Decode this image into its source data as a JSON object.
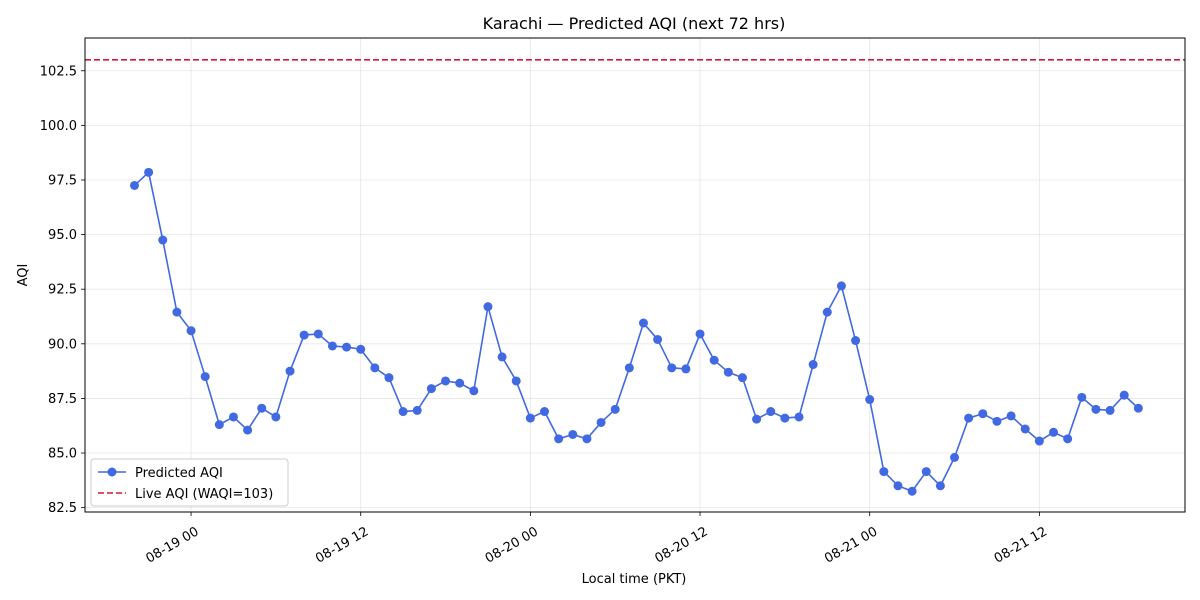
{
  "chart_data": {
    "type": "line",
    "title": "Karachi — Predicted AQI (next 72 hrs)",
    "xlabel": "Local time (PKT)",
    "ylabel": "AQI",
    "ylim": [
      82.3,
      104.0
    ],
    "xlim_hours": [
      -7.5,
      70.3
    ],
    "yticks": [
      82.5,
      85.0,
      87.5,
      90.0,
      92.5,
      95.0,
      97.5,
      100.0,
      102.5
    ],
    "ytick_labels": [
      "82.5",
      "85.0",
      "87.5",
      "90.0",
      "92.5",
      "95.0",
      "97.5",
      "100.0",
      "102.5"
    ],
    "xticks_hours": [
      0,
      12,
      24,
      36,
      48,
      60
    ],
    "xtick_labels": [
      "08-19 00",
      "08-19 12",
      "08-20 00",
      "08-20 12",
      "08-21 00",
      "08-21 12"
    ],
    "grid": true,
    "legend_position": "lower-left",
    "hline": {
      "name": "Live AQI (WAQI=103)",
      "value": 103.0,
      "color": "#dc143c"
    },
    "series": [
      {
        "name": "Predicted AQI",
        "color": "#4169e1",
        "x_hours": [
          -4,
          -3,
          -2,
          -1,
          0,
          1,
          2,
          3,
          4,
          5,
          6,
          7,
          8,
          9,
          10,
          11,
          12,
          13,
          14,
          15,
          16,
          17,
          18,
          19,
          20,
          21,
          22,
          23,
          24,
          25,
          26,
          27,
          28,
          29,
          30,
          31,
          32,
          33,
          34,
          35,
          36,
          37,
          38,
          39,
          40,
          41,
          42,
          43,
          44,
          45,
          46,
          47,
          48,
          49,
          50,
          51,
          52,
          53,
          54,
          55,
          56,
          57,
          58,
          59,
          60,
          61,
          62,
          63,
          64,
          65,
          66,
          67
        ],
        "values": [
          97.25,
          97.85,
          94.75,
          91.45,
          90.6,
          88.5,
          86.3,
          86.65,
          86.05,
          87.05,
          86.65,
          88.75,
          90.4,
          90.45,
          89.9,
          89.85,
          89.75,
          88.9,
          88.45,
          86.9,
          86.95,
          87.95,
          88.3,
          88.2,
          87.85,
          91.7,
          89.4,
          88.3,
          86.6,
          86.9,
          85.65,
          85.85,
          85.65,
          86.4,
          87.0,
          88.9,
          90.95,
          90.2,
          88.9,
          88.85,
          90.45,
          89.25,
          88.7,
          88.45,
          86.55,
          86.9,
          86.6,
          86.65,
          89.05,
          91.45,
          92.65,
          90.15,
          87.45,
          84.15,
          83.5,
          83.25,
          84.15,
          83.5,
          84.8,
          86.6,
          86.8,
          86.45,
          86.7,
          86.1,
          85.55,
          85.95,
          85.65,
          87.55,
          87.0,
          86.95,
          87.65,
          87.05
        ]
      }
    ]
  }
}
